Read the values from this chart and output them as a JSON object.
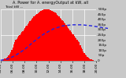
{
  "title": "A. Power for A. energyOutput at kW, all",
  "subtitle": "Total kW --",
  "bg_color": "#c8c8c8",
  "plot_bg_color": "#c8c8c8",
  "bar_color": "#ff0000",
  "line_color": "#2222dd",
  "grid_color": "#ffffff",
  "y_right_labels": [
    "500p",
    "450p",
    "400p",
    "350p",
    "300p",
    "250p",
    "200p",
    "150p",
    "100p",
    "50p",
    "0"
  ],
  "x_tick_positions": [
    0.0,
    0.125,
    0.25,
    0.375,
    0.5,
    0.625,
    0.75,
    0.875,
    1.0
  ],
  "x_labels": [
    "04:00",
    "06:00",
    "08:00",
    "10:00",
    "12:00",
    "14:00",
    "16:00",
    "18:00",
    "20:00"
  ]
}
